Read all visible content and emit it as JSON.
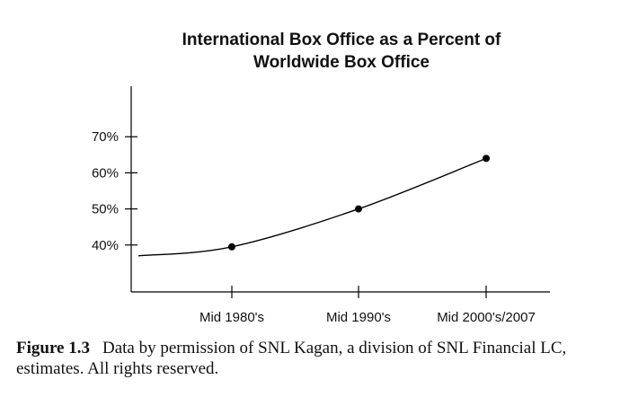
{
  "chart_data": {
    "type": "line",
    "title_lines": [
      "International Box Office as a Percent of",
      "Worldwide Box Office"
    ],
    "categories": [
      "Mid 1980's",
      "Mid 1990's",
      "Mid 2000's/2007"
    ],
    "series": [
      {
        "values": [
          39.5,
          50,
          64
        ]
      }
    ],
    "y_ticks": [
      "40%",
      "50%",
      "60%",
      "70%"
    ],
    "y_tick_values": [
      40,
      50,
      60,
      70
    ],
    "ylim": [
      27,
      84
    ],
    "grid": false,
    "line_color": "#000000"
  },
  "caption": {
    "label": "Figure 1.3",
    "text": "Data by permission of SNL Kagan, a division of SNL Financial LC, estimates. All rights reserved."
  }
}
